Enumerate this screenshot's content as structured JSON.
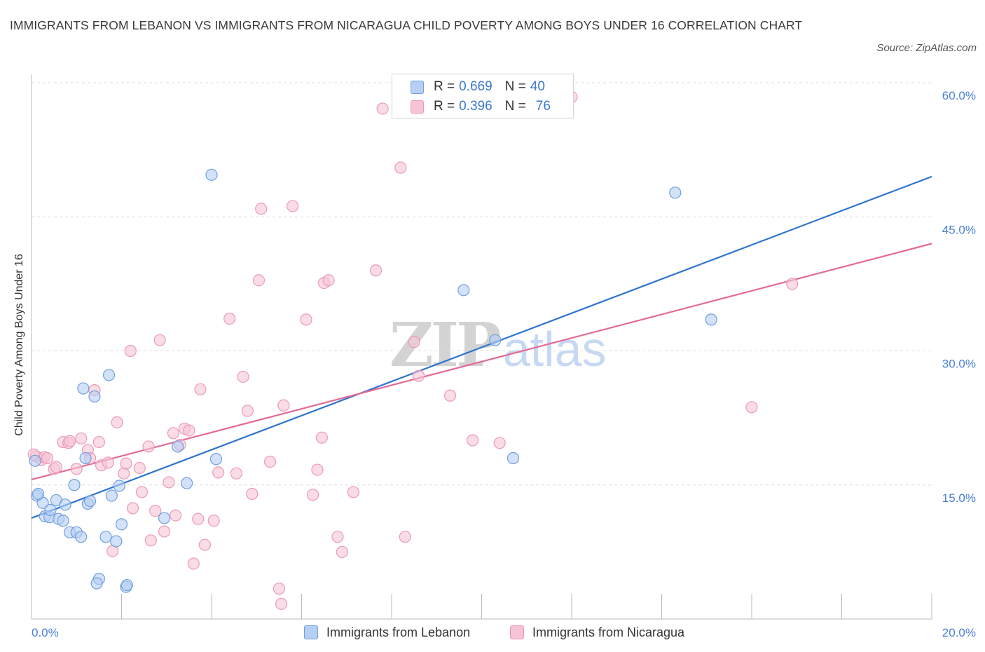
{
  "header": {
    "title": "IMMIGRANTS FROM LEBANON VS IMMIGRANTS FROM NICARAGUA CHILD POVERTY AMONG BOYS UNDER 16 CORRELATION CHART",
    "source": "Source: ZipAtlas.com"
  },
  "watermark": {
    "zip": "ZIP",
    "atlas": "atlas"
  },
  "legend": {
    "rows": [
      {
        "r_label": "R =",
        "r_value": "0.669",
        "n_label": "N =",
        "n_value": "40"
      },
      {
        "r_label": "R =",
        "r_value": "0.396",
        "n_label": "N =",
        "n_value": "76"
      }
    ]
  },
  "colors": {
    "lebanon_fill": "#b6cff3",
    "lebanon_stroke": "#6f9fe0",
    "lebanon_line": "#2f74d0",
    "nicaragua_fill": "#f7c4d4",
    "nicaragua_stroke": "#ec9ab5",
    "nicaragua_line": "#e46a95",
    "tick_text": "#4a7fd4",
    "grid": "#dcdcdc"
  },
  "chart_data": {
    "type": "scatter",
    "title": "IMMIGRANTS FROM LEBANON VS IMMIGRANTS FROM NICARAGUA CHILD POVERTY AMONG BOYS UNDER 16 CORRELATION CHART",
    "xlabel": "",
    "ylabel": "Child Poverty Among Boys Under 16",
    "xlim": [
      0,
      20
    ],
    "ylim": [
      0,
      60
    ],
    "x_tick_labels": [
      "0.0%",
      "20.0%"
    ],
    "y_ticks": [
      15,
      30,
      45,
      60
    ],
    "y_tick_labels": [
      "15.0%",
      "30.0%",
      "45.0%",
      "60.0%"
    ],
    "series": [
      {
        "name": "Immigrants from Lebanon",
        "R": 0.669,
        "N": 40,
        "trend": {
          "x0": 0,
          "y0": 11.3,
          "x1": 20,
          "y1": 49.5
        },
        "points": [
          [
            0.12,
            13.8
          ],
          [
            0.25,
            13.0
          ],
          [
            0.3,
            11.5
          ],
          [
            0.4,
            11.4
          ],
          [
            0.42,
            12.2
          ],
          [
            0.55,
            13.3
          ],
          [
            0.6,
            11.2
          ],
          [
            0.7,
            11.0
          ],
          [
            0.75,
            12.8
          ],
          [
            0.85,
            9.7
          ],
          [
            0.95,
            15.0
          ],
          [
            1.0,
            9.7
          ],
          [
            1.1,
            9.2
          ],
          [
            1.2,
            18.0
          ],
          [
            1.25,
            12.9
          ],
          [
            1.3,
            13.2
          ],
          [
            1.15,
            25.8
          ],
          [
            1.4,
            24.9
          ],
          [
            1.5,
            4.5
          ],
          [
            1.45,
            4.0
          ],
          [
            1.65,
            9.2
          ],
          [
            1.72,
            27.3
          ],
          [
            1.78,
            13.8
          ],
          [
            1.88,
            8.7
          ],
          [
            1.95,
            14.9
          ],
          [
            2.0,
            10.6
          ],
          [
            2.1,
            3.6
          ],
          [
            2.12,
            3.8
          ],
          [
            2.95,
            11.3
          ],
          [
            3.25,
            19.3
          ],
          [
            3.45,
            15.2
          ],
          [
            4.0,
            49.7
          ],
          [
            4.1,
            17.9
          ],
          [
            9.6,
            36.8
          ],
          [
            10.3,
            31.2
          ],
          [
            10.7,
            18.0
          ],
          [
            14.3,
            47.7
          ],
          [
            15.1,
            33.5
          ],
          [
            0.08,
            17.7
          ],
          [
            0.15,
            14.0
          ]
        ]
      },
      {
        "name": "Immigrants from Nicaragua",
        "R": 0.396,
        "N": 76,
        "trend": {
          "x0": 0,
          "y0": 15.6,
          "x1": 20,
          "y1": 42.0
        },
        "points": [
          [
            0.1,
            18.2
          ],
          [
            0.22,
            17.8
          ],
          [
            0.28,
            18.1
          ],
          [
            0.35,
            18.0
          ],
          [
            0.5,
            16.8
          ],
          [
            0.55,
            17.0
          ],
          [
            0.7,
            19.8
          ],
          [
            0.82,
            19.7
          ],
          [
            0.85,
            19.9
          ],
          [
            1.0,
            16.8
          ],
          [
            1.1,
            20.2
          ],
          [
            1.25,
            18.9
          ],
          [
            1.3,
            18.0
          ],
          [
            1.4,
            25.6
          ],
          [
            1.5,
            19.8
          ],
          [
            1.55,
            17.2
          ],
          [
            1.7,
            17.5
          ],
          [
            1.8,
            7.6
          ],
          [
            1.9,
            22.0
          ],
          [
            2.05,
            16.3
          ],
          [
            2.1,
            17.4
          ],
          [
            2.2,
            30.0
          ],
          [
            2.25,
            12.4
          ],
          [
            2.4,
            16.9
          ],
          [
            2.45,
            14.2
          ],
          [
            2.6,
            19.3
          ],
          [
            2.65,
            8.8
          ],
          [
            2.75,
            12.1
          ],
          [
            2.85,
            31.2
          ],
          [
            2.95,
            9.8
          ],
          [
            3.05,
            15.3
          ],
          [
            3.15,
            20.8
          ],
          [
            3.2,
            11.6
          ],
          [
            3.3,
            19.5
          ],
          [
            3.4,
            21.3
          ],
          [
            3.5,
            21.1
          ],
          [
            3.6,
            6.2
          ],
          [
            3.7,
            11.2
          ],
          [
            3.75,
            25.7
          ],
          [
            3.85,
            8.3
          ],
          [
            4.05,
            11.0
          ],
          [
            4.15,
            16.4
          ],
          [
            4.4,
            33.6
          ],
          [
            4.55,
            16.3
          ],
          [
            4.7,
            27.1
          ],
          [
            4.8,
            23.3
          ],
          [
            4.9,
            14.0
          ],
          [
            5.1,
            45.9
          ],
          [
            5.05,
            37.9
          ],
          [
            5.3,
            17.6
          ],
          [
            5.5,
            3.4
          ],
          [
            5.55,
            1.7
          ],
          [
            5.6,
            23.9
          ],
          [
            5.8,
            46.2
          ],
          [
            6.1,
            33.5
          ],
          [
            6.25,
            13.9
          ],
          [
            6.35,
            16.7
          ],
          [
            6.45,
            20.3
          ],
          [
            6.5,
            37.6
          ],
          [
            6.6,
            37.9
          ],
          [
            6.8,
            9.2
          ],
          [
            6.9,
            7.5
          ],
          [
            7.15,
            14.2
          ],
          [
            7.65,
            39.0
          ],
          [
            7.8,
            57.1
          ],
          [
            8.2,
            50.5
          ],
          [
            8.3,
            9.2
          ],
          [
            8.5,
            31.0
          ],
          [
            8.6,
            27.2
          ],
          [
            9.3,
            25.0
          ],
          [
            9.8,
            20.0
          ],
          [
            10.4,
            19.7
          ],
          [
            12.0,
            58.4
          ],
          [
            16.0,
            23.7
          ],
          [
            16.9,
            37.5
          ],
          [
            0.05,
            18.4
          ]
        ]
      }
    ]
  },
  "bottom_legend": {
    "lebanon_label": "Immigrants from Lebanon",
    "nicaragua_label": "Immigrants from Nicaragua"
  }
}
